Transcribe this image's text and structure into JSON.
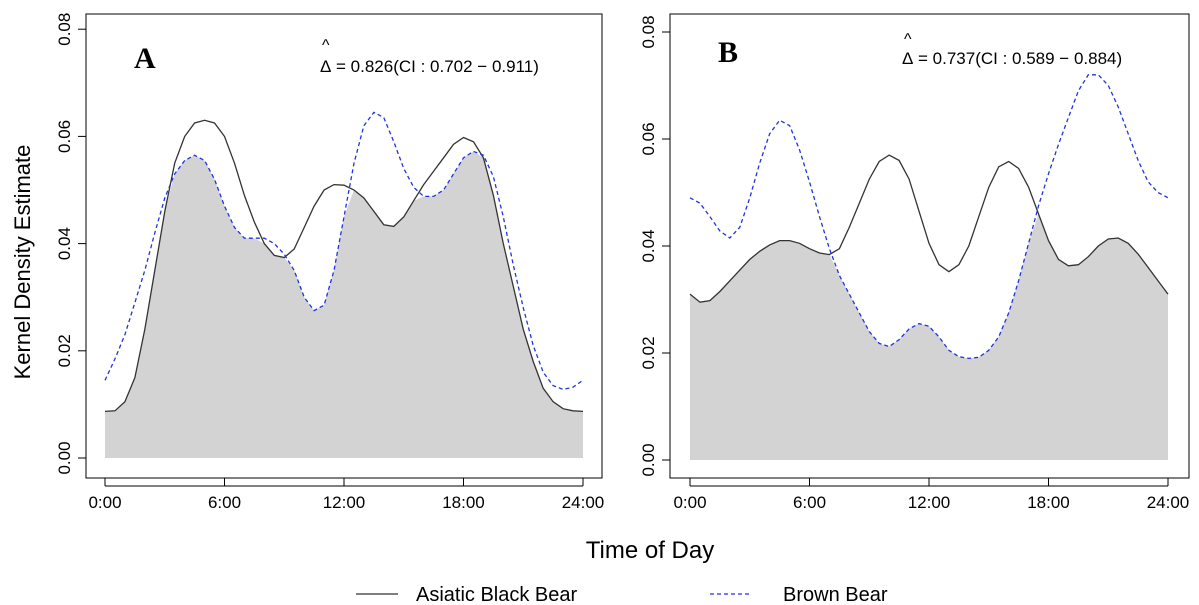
{
  "figure": {
    "ylabel": "Kernel Density Estimate",
    "xlabel": "Time of Day",
    "legend": [
      {
        "name": "Asiatic Black Bear",
        "color": "#333333",
        "style": "solid"
      },
      {
        "name": "Brown Bear",
        "color": "#2233dd",
        "style": "dashed"
      }
    ],
    "colors": {
      "overlap_fill": "#d3d3d3",
      "black_bear": "#333333",
      "brown_bear": "#2233dd"
    }
  },
  "chart_data": [
    {
      "type": "area",
      "panel_label": "A",
      "annotation": {
        "symbol": "Δ",
        "text": "= 0.826(CI : 0.702 − 0.911)"
      },
      "x_ticks": [
        "0:00",
        "6:00",
        "12:00",
        "18:00",
        "24:00"
      ],
      "y_ticks": [
        "0.00",
        "0.02",
        "0.04",
        "0.06",
        "0.08"
      ],
      "xlim": [
        0,
        24
      ],
      "ylim": [
        0,
        0.08
      ],
      "series": [
        {
          "name": "Asiatic Black Bear",
          "x": [
            0,
            0.5,
            1,
            1.5,
            2,
            2.5,
            3,
            3.5,
            4,
            4.5,
            5,
            5.5,
            6,
            6.5,
            7,
            7.5,
            8,
            8.5,
            9,
            9.5,
            10,
            10.5,
            11,
            11.5,
            12,
            12.5,
            13,
            13.5,
            14,
            14.5,
            15,
            15.5,
            16,
            16.5,
            17,
            17.5,
            18,
            18.5,
            19,
            19.5,
            20,
            20.5,
            21,
            21.5,
            22,
            22.5,
            23,
            23.5,
            24
          ],
          "values": [
            0.0087,
            0.0088,
            0.0105,
            0.015,
            0.024,
            0.035,
            0.046,
            0.055,
            0.06,
            0.0625,
            0.063,
            0.0625,
            0.06,
            0.055,
            0.049,
            0.044,
            0.04,
            0.0378,
            0.0374,
            0.039,
            0.043,
            0.047,
            0.05,
            0.051,
            0.0509,
            0.05,
            0.0485,
            0.046,
            0.0435,
            0.0432,
            0.045,
            0.048,
            0.051,
            0.0535,
            0.056,
            0.0585,
            0.0598,
            0.059,
            0.056,
            0.049,
            0.04,
            0.032,
            0.024,
            0.018,
            0.013,
            0.0105,
            0.0092,
            0.0088,
            0.0087
          ]
        },
        {
          "name": "Brown Bear",
          "x": [
            0,
            0.5,
            1,
            1.5,
            2,
            2.5,
            3,
            3.5,
            4,
            4.5,
            5,
            5.5,
            6,
            6.5,
            7,
            7.5,
            8,
            8.5,
            9,
            9.5,
            10,
            10.5,
            11,
            11.5,
            12,
            12.5,
            13,
            13.5,
            14,
            14.5,
            15,
            15.5,
            16,
            16.5,
            17,
            17.5,
            18,
            18.5,
            19,
            19.5,
            20,
            20.5,
            21,
            21.5,
            22,
            22.5,
            23,
            23.5,
            24
          ],
          "values": [
            0.0145,
            0.0185,
            0.023,
            0.029,
            0.035,
            0.042,
            0.0485,
            0.053,
            0.0555,
            0.0565,
            0.0555,
            0.052,
            0.047,
            0.043,
            0.041,
            0.041,
            0.041,
            0.04,
            0.038,
            0.035,
            0.03,
            0.0275,
            0.0285,
            0.035,
            0.045,
            0.055,
            0.062,
            0.0645,
            0.0635,
            0.059,
            0.054,
            0.0505,
            0.0488,
            0.0488,
            0.05,
            0.053,
            0.056,
            0.0572,
            0.0565,
            0.0525,
            0.045,
            0.036,
            0.028,
            0.021,
            0.016,
            0.0135,
            0.0128,
            0.0132,
            0.0145
          ]
        }
      ]
    },
    {
      "type": "area",
      "panel_label": "B",
      "annotation": {
        "symbol": "Δ",
        "text": "= 0.737(CI : 0.589 − 0.884)"
      },
      "x_ticks": [
        "0:00",
        "6:00",
        "12:00",
        "18:00",
        "24:00"
      ],
      "y_ticks": [
        "0.00",
        "0.02",
        "0.04",
        "0.06",
        "0.08"
      ],
      "xlim": [
        0,
        24
      ],
      "ylim": [
        0,
        0.08
      ],
      "series": [
        {
          "name": "Asiatic Black Bear",
          "x": [
            0,
            0.5,
            1,
            1.5,
            2,
            2.5,
            3,
            3.5,
            4,
            4.5,
            5,
            5.5,
            6,
            6.5,
            7,
            7.5,
            8,
            8.5,
            9,
            9.5,
            10,
            10.5,
            11,
            11.5,
            12,
            12.5,
            13,
            13.5,
            14,
            14.5,
            15,
            15.5,
            16,
            16.5,
            17,
            17.5,
            18,
            18.5,
            19,
            19.5,
            20,
            20.5,
            21,
            21.5,
            22,
            22.5,
            23,
            23.5,
            24
          ],
          "values": [
            0.031,
            0.0295,
            0.0298,
            0.0315,
            0.0335,
            0.0355,
            0.0375,
            0.039,
            0.0402,
            0.041,
            0.041,
            0.0405,
            0.0395,
            0.0387,
            0.0384,
            0.0395,
            0.0435,
            0.048,
            0.0525,
            0.0558,
            0.057,
            0.056,
            0.0525,
            0.0465,
            0.0405,
            0.0365,
            0.0352,
            0.0365,
            0.04,
            0.0455,
            0.051,
            0.0548,
            0.0558,
            0.0545,
            0.051,
            0.046,
            0.041,
            0.0375,
            0.0363,
            0.0365,
            0.038,
            0.04,
            0.0413,
            0.0415,
            0.0405,
            0.0385,
            0.036,
            0.0335,
            0.031
          ]
        },
        {
          "name": "Brown Bear",
          "x": [
            0,
            0.5,
            1,
            1.5,
            2,
            2.5,
            3,
            3.5,
            4,
            4.5,
            5,
            5.5,
            6,
            6.5,
            7,
            7.5,
            8,
            8.5,
            9,
            9.5,
            10,
            10.5,
            11,
            11.5,
            12,
            12.5,
            13,
            13.5,
            14,
            14.5,
            15,
            15.5,
            16,
            16.5,
            17,
            17.5,
            18,
            18.5,
            19,
            19.5,
            20,
            20.5,
            21,
            21.5,
            22,
            22.5,
            23,
            23.5,
            24
          ],
          "values": [
            0.049,
            0.048,
            0.0455,
            0.0428,
            0.0415,
            0.0435,
            0.049,
            0.0555,
            0.061,
            0.0635,
            0.0625,
            0.058,
            0.052,
            0.0455,
            0.0395,
            0.0345,
            0.031,
            0.0275,
            0.024,
            0.0218,
            0.0212,
            0.0225,
            0.0245,
            0.0255,
            0.025,
            0.023,
            0.0205,
            0.0193,
            0.019,
            0.0192,
            0.0205,
            0.023,
            0.0275,
            0.0335,
            0.0405,
            0.0475,
            0.0535,
            0.059,
            0.064,
            0.069,
            0.072,
            0.072,
            0.07,
            0.066,
            0.061,
            0.056,
            0.052,
            0.05,
            0.049
          ]
        }
      ]
    }
  ]
}
